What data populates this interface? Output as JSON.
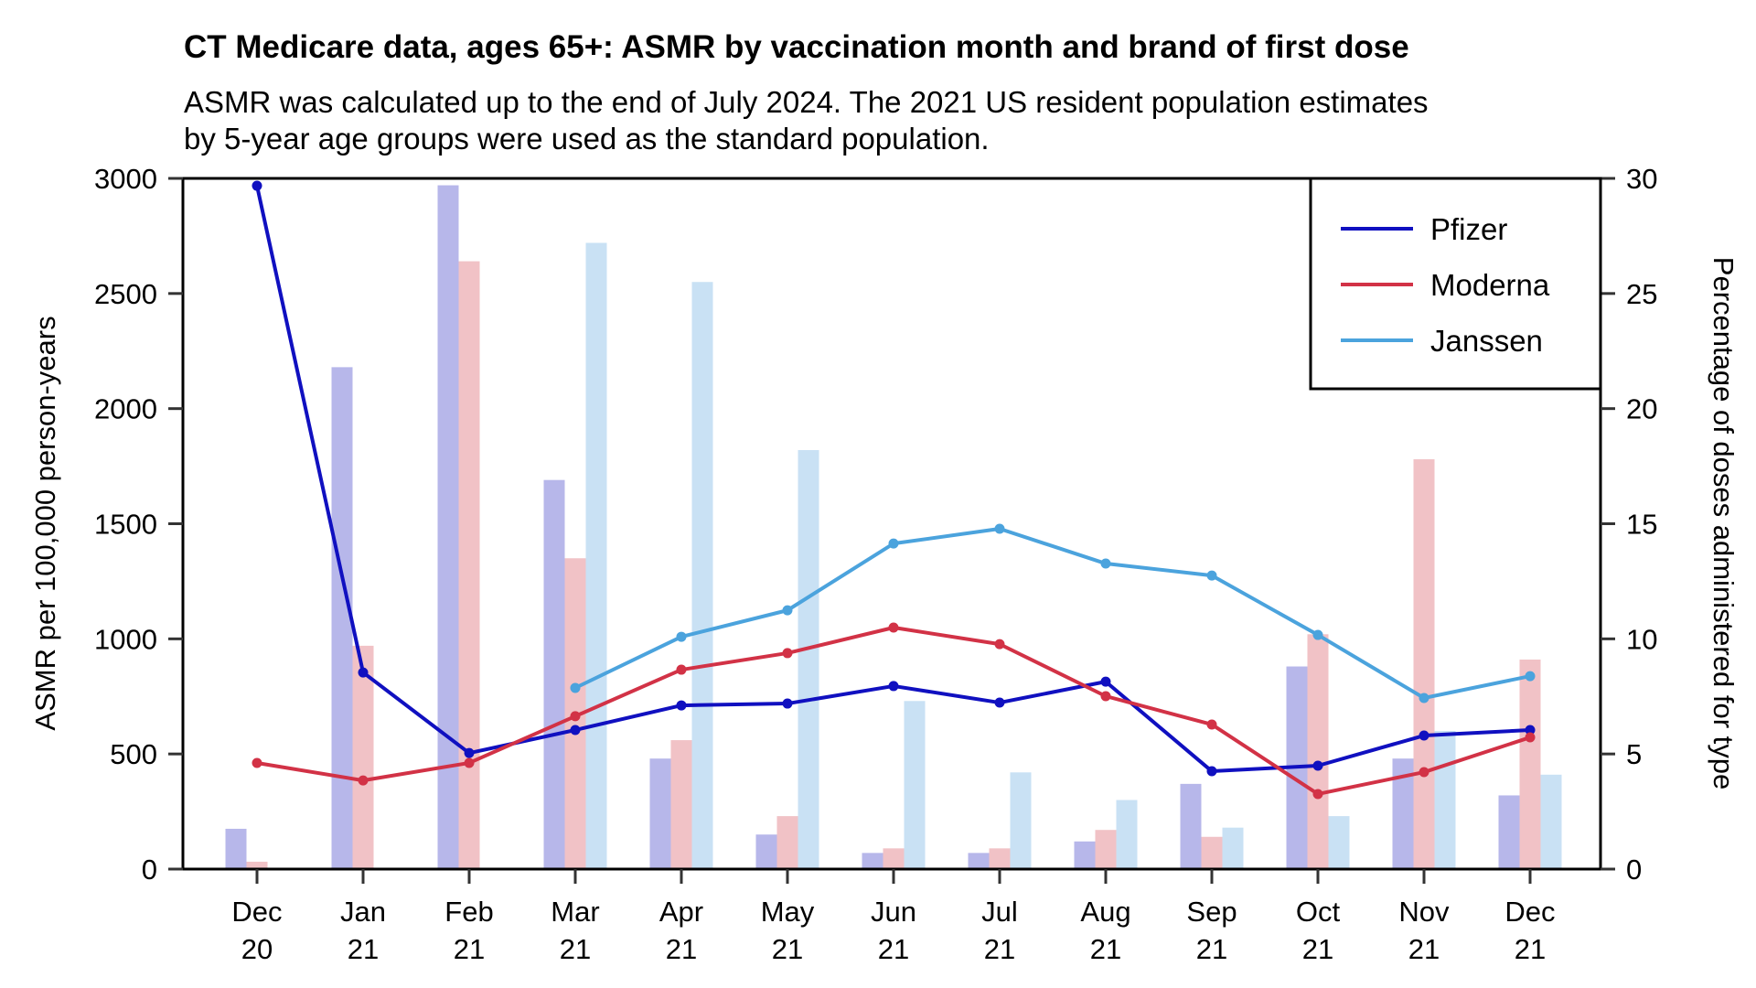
{
  "chart_data": {
    "type": "bar+line",
    "title": "CT Medicare data, ages 65+: ASMR by vaccination month and brand of first dose",
    "subtitle_lines": [
      "ASMR was calculated up to the end of July 2024. The 2021 US resident population estimates",
      "by 5-year age groups were used as the standard population."
    ],
    "categories": [
      [
        "Dec",
        "20"
      ],
      [
        "Jan",
        "21"
      ],
      [
        "Feb",
        "21"
      ],
      [
        "Mar",
        "21"
      ],
      [
        "Apr",
        "21"
      ],
      [
        "May",
        "21"
      ],
      [
        "Jun",
        "21"
      ],
      [
        "Jul",
        "21"
      ],
      [
        "Aug",
        "21"
      ],
      [
        "Sep",
        "21"
      ],
      [
        "Oct",
        "21"
      ],
      [
        "Nov",
        "21"
      ],
      [
        "Dec",
        "21"
      ]
    ],
    "ylabel_left": "ASMR per 100,000 person-years",
    "ylabel_right": "Percentage of doses administered for type",
    "ylim_left": [
      0,
      3000
    ],
    "ylim_right": [
      0,
      30
    ],
    "yticks_left": [
      "0",
      "500",
      "1000",
      "1500",
      "2000",
      "2500",
      "3000"
    ],
    "yticks_right": [
      "0",
      "5",
      "10",
      "15",
      "20",
      "25",
      "30"
    ],
    "grid": false,
    "legend_position": "top-right",
    "series": [
      {
        "name": "Pfizer",
        "line_color": "#1010c0",
        "bar_color": "#b7b7ea",
        "asmr": [
          2968,
          854,
          504,
          604,
          711,
          719,
          795,
          723,
          814,
          425,
          449,
          580,
          604
        ],
        "dose_pct": [
          1.75,
          21.8,
          29.7,
          16.9,
          4.8,
          1.5,
          0.7,
          0.7,
          1.2,
          3.7,
          8.8,
          4.8,
          3.2
        ]
      },
      {
        "name": "Moderna",
        "line_color": "#d23246",
        "bar_color": "#f1c2c6",
        "asmr": [
          461,
          385,
          461,
          664,
          866,
          938,
          1049,
          977,
          751,
          628,
          326,
          421,
          572
        ],
        "dose_pct": [
          0.32,
          9.7,
          26.4,
          13.5,
          5.6,
          2.3,
          0.9,
          0.9,
          1.7,
          1.4,
          10.2,
          17.8,
          9.1
        ]
      },
      {
        "name": "Janssen",
        "line_color": "#4ba3dd",
        "bar_color": "#c9e1f4",
        "asmr": [
          null,
          null,
          null,
          787,
          1009,
          1124,
          1414,
          1478,
          1327,
          1275,
          1017,
          743,
          838
        ],
        "dose_pct": [
          null,
          null,
          null,
          27.2,
          25.5,
          18.2,
          7.3,
          4.2,
          3.0,
          1.8,
          2.3,
          6.0,
          4.1
        ]
      }
    ]
  }
}
